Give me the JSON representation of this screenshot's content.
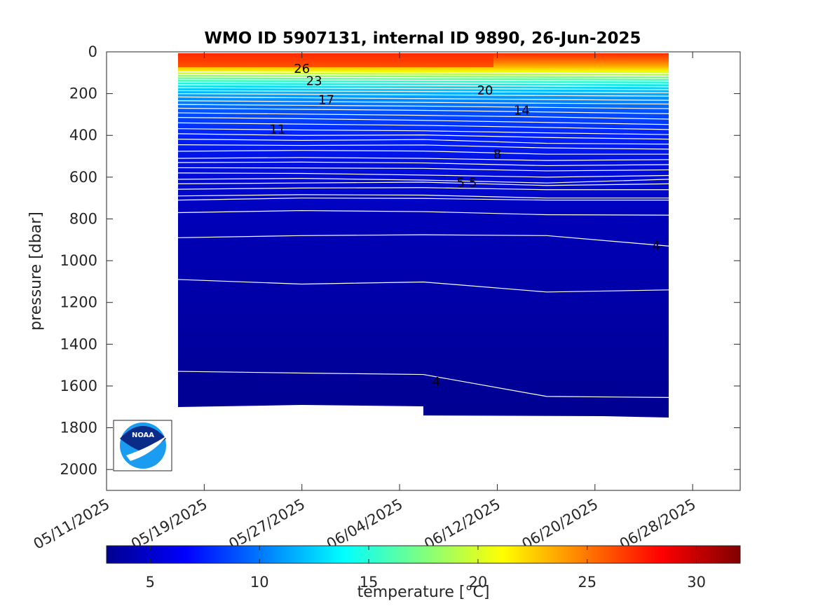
{
  "chart_data": {
    "type": "heatmap",
    "title": "WMO ID 5907131, internal ID 9890, 26-Jun-2025",
    "ylabel": "pressure [dbar]",
    "colorbar_label": "temperature [°C]",
    "y_ticks": [
      "0",
      "200",
      "400",
      "600",
      "800",
      "1000",
      "1200",
      "1400",
      "1600",
      "1800",
      "2000"
    ],
    "x_ticks": [
      "05/11/2025",
      "05/19/2025",
      "05/27/2025",
      "06/04/2025",
      "06/12/2025",
      "06/20/2025",
      "06/28/2025"
    ],
    "colorbar_ticks": [
      "5",
      "10",
      "15",
      "20",
      "25",
      "30"
    ],
    "ylim": [
      2100,
      0
    ],
    "clim": [
      3,
      32
    ],
    "contour_labels": [
      {
        "text": "26",
        "date": "05/27/2025",
        "pressure": 80
      },
      {
        "text": "23",
        "date": "05/28/2025",
        "pressure": 140
      },
      {
        "text": "20",
        "date": "06/11/2025",
        "pressure": 185
      },
      {
        "text": "17",
        "date": "05/29/2025",
        "pressure": 230
      },
      {
        "text": "14",
        "date": "06/14/2025",
        "pressure": 280
      },
      {
        "text": "11",
        "date": "05/25/2025",
        "pressure": 370
      },
      {
        "text": "8",
        "date": "06/12/2025",
        "pressure": 490
      },
      {
        "text": "5",
        "date": "06/09/2025",
        "pressure": 625
      },
      {
        "text": "5",
        "date": "06/10/2025",
        "pressure": 625
      },
      {
        "text": "4",
        "date": "06/07/2025",
        "pressure": 1580
      },
      {
        "text": "4",
        "date": "06/25/2025",
        "pressure": 930
      }
    ]
  }
}
